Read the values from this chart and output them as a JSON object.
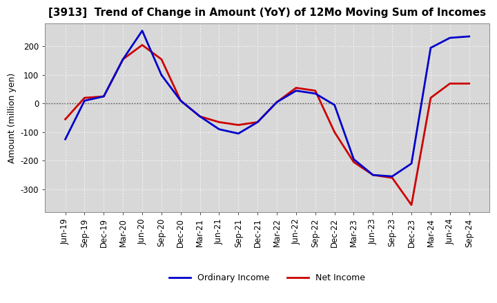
{
  "title": "[3913]  Trend of Change in Amount (YoY) of 12Mo Moving Sum of Incomes",
  "ylabel": "Amount (million yen)",
  "x_labels": [
    "Jun-19",
    "Sep-19",
    "Dec-19",
    "Mar-20",
    "Jun-20",
    "Sep-20",
    "Dec-20",
    "Mar-21",
    "Jun-21",
    "Sep-21",
    "Dec-21",
    "Mar-22",
    "Jun-22",
    "Sep-22",
    "Dec-22",
    "Mar-23",
    "Jun-23",
    "Sep-23",
    "Dec-23",
    "Mar-24",
    "Jun-24",
    "Sep-24"
  ],
  "ordinary_income": [
    -125,
    10,
    25,
    155,
    255,
    100,
    10,
    -45,
    -90,
    -105,
    -65,
    5,
    45,
    35,
    -5,
    -195,
    -250,
    -255,
    -210,
    195,
    230,
    235
  ],
  "net_income": [
    -55,
    20,
    25,
    155,
    205,
    155,
    10,
    -45,
    -65,
    -75,
    -65,
    5,
    55,
    45,
    -100,
    -205,
    -250,
    -260,
    -355,
    20,
    70,
    70
  ],
  "ylim": [
    -380,
    280
  ],
  "yticks": [
    -300,
    -200,
    -100,
    0,
    100,
    200
  ],
  "ordinary_color": "#0000cc",
  "net_color": "#cc0000",
  "bg_color": "#d8d8d8",
  "plot_bg": "#d8d8d8",
  "grid_color": "#ffffff",
  "zero_line_color": "#666666",
  "line_width": 2.0,
  "title_fontsize": 11,
  "axis_fontsize": 8.5,
  "ylabel_fontsize": 9,
  "legend_fontsize": 9
}
